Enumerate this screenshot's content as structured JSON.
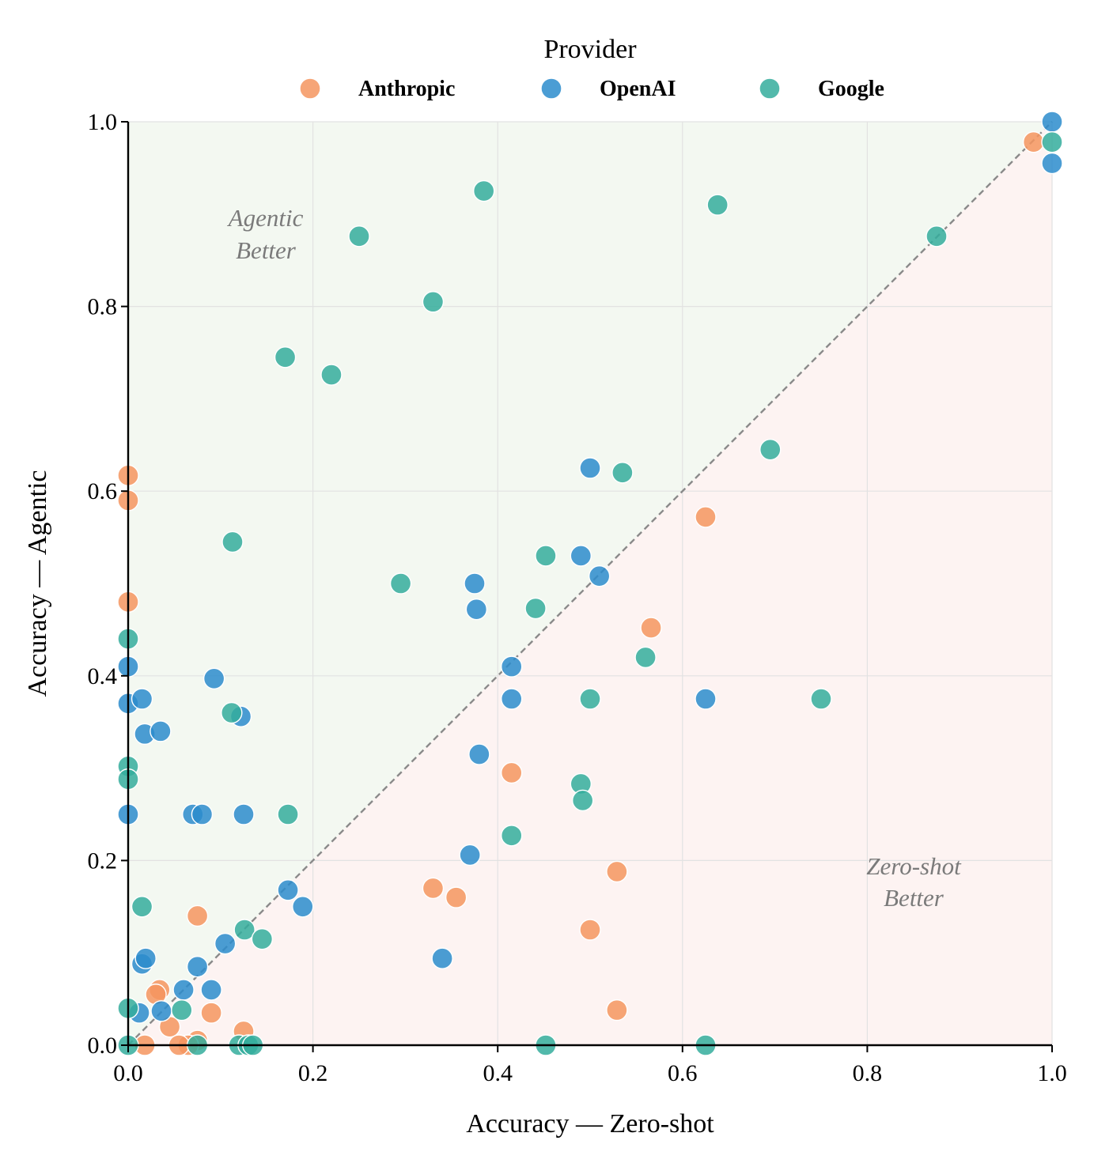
{
  "chart_data": {
    "type": "scatter",
    "xlabel": "Accuracy — Zero-shot",
    "ylabel": "Accuracy — Agentic",
    "xlim": [
      0,
      1
    ],
    "ylim": [
      0,
      1
    ],
    "xticks": [
      "0.0",
      "0.2",
      "0.4",
      "0.6",
      "0.8",
      "1.0"
    ],
    "yticks": [
      "0.0",
      "0.2",
      "0.4",
      "0.6",
      "0.8",
      "1.0"
    ],
    "grid": true,
    "diagonal_reference": true,
    "legend": {
      "title": "Provider",
      "placement": "top-center"
    },
    "regions": {
      "upper": [
        "Agentic",
        "Better"
      ],
      "lower": [
        "Zero-shot",
        "Better"
      ]
    },
    "colors": {
      "upper_region": "#f3f8f1",
      "lower_region": "#fdf3f2",
      "diagonal": "#8a8a8a"
    },
    "series": [
      {
        "name": "Anthropic",
        "color": "#f4955f",
        "points": [
          [
            0.98,
            0.978
          ],
          [
            0.625,
            0.572
          ],
          [
            0.566,
            0.452
          ],
          [
            0.415,
            0.295
          ],
          [
            0.529,
            0.188
          ],
          [
            0.33,
            0.17
          ],
          [
            0.355,
            0.16
          ],
          [
            0.5,
            0.125
          ],
          [
            0.529,
            0.038
          ],
          [
            0.0,
            0.617
          ],
          [
            0.0,
            0.59
          ],
          [
            0.0,
            0.48
          ],
          [
            0.075,
            0.14
          ],
          [
            0.034,
            0.06
          ],
          [
            0.03,
            0.055
          ],
          [
            0.09,
            0.035
          ],
          [
            0.045,
            0.02
          ],
          [
            0.125,
            0.015
          ],
          [
            0.075,
            0.005
          ],
          [
            0.065,
            0.0
          ],
          [
            0.055,
            0.0
          ],
          [
            0.018,
            0.0
          ]
        ]
      },
      {
        "name": "OpenAI",
        "color": "#2b8ccc",
        "points": [
          [
            1.0,
            1.0
          ],
          [
            1.0,
            0.955
          ],
          [
            0.5,
            0.625
          ],
          [
            0.49,
            0.53
          ],
          [
            0.51,
            0.508
          ],
          [
            0.375,
            0.5
          ],
          [
            0.377,
            0.472
          ],
          [
            0.415,
            0.41
          ],
          [
            0.415,
            0.375
          ],
          [
            0.625,
            0.375
          ],
          [
            0.38,
            0.315
          ],
          [
            0.37,
            0.206
          ],
          [
            0.34,
            0.094
          ],
          [
            0.173,
            0.168
          ],
          [
            0.189,
            0.15
          ],
          [
            0.0,
            0.41
          ],
          [
            0.0,
            0.37
          ],
          [
            0.015,
            0.375
          ],
          [
            0.018,
            0.337
          ],
          [
            0.035,
            0.34
          ],
          [
            0.093,
            0.397
          ],
          [
            0.122,
            0.356
          ],
          [
            0.0,
            0.25
          ],
          [
            0.07,
            0.25
          ],
          [
            0.08,
            0.25
          ],
          [
            0.125,
            0.25
          ],
          [
            0.105,
            0.11
          ],
          [
            0.075,
            0.085
          ],
          [
            0.015,
            0.088
          ],
          [
            0.019,
            0.094
          ],
          [
            0.06,
            0.06
          ],
          [
            0.09,
            0.06
          ],
          [
            0.012,
            0.035
          ],
          [
            0.036,
            0.037
          ]
        ]
      },
      {
        "name": "Google",
        "color": "#34ad9c",
        "points": [
          [
            1.0,
            0.978
          ],
          [
            0.875,
            0.876
          ],
          [
            0.385,
            0.925
          ],
          [
            0.638,
            0.91
          ],
          [
            0.25,
            0.876
          ],
          [
            0.33,
            0.805
          ],
          [
            0.17,
            0.745
          ],
          [
            0.22,
            0.726
          ],
          [
            0.695,
            0.645
          ],
          [
            0.535,
            0.62
          ],
          [
            0.452,
            0.53
          ],
          [
            0.295,
            0.5
          ],
          [
            0.441,
            0.473
          ],
          [
            0.56,
            0.42
          ],
          [
            0.5,
            0.375
          ],
          [
            0.75,
            0.375
          ],
          [
            0.49,
            0.283
          ],
          [
            0.492,
            0.265
          ],
          [
            0.415,
            0.227
          ],
          [
            0.113,
            0.545
          ],
          [
            0.0,
            0.44
          ],
          [
            0.112,
            0.36
          ],
          [
            0.0,
            0.302
          ],
          [
            0.0,
            0.288
          ],
          [
            0.173,
            0.25
          ],
          [
            0.015,
            0.15
          ],
          [
            0.126,
            0.125
          ],
          [
            0.145,
            0.115
          ],
          [
            0.058,
            0.038
          ],
          [
            0.0,
            0.04
          ],
          [
            0.452,
            0.0
          ],
          [
            0.625,
            0.0
          ],
          [
            0.0,
            0.0
          ],
          [
            0.075,
            0.0
          ],
          [
            0.12,
            0.0
          ],
          [
            0.13,
            0.0
          ],
          [
            0.135,
            0.0
          ]
        ]
      }
    ]
  }
}
